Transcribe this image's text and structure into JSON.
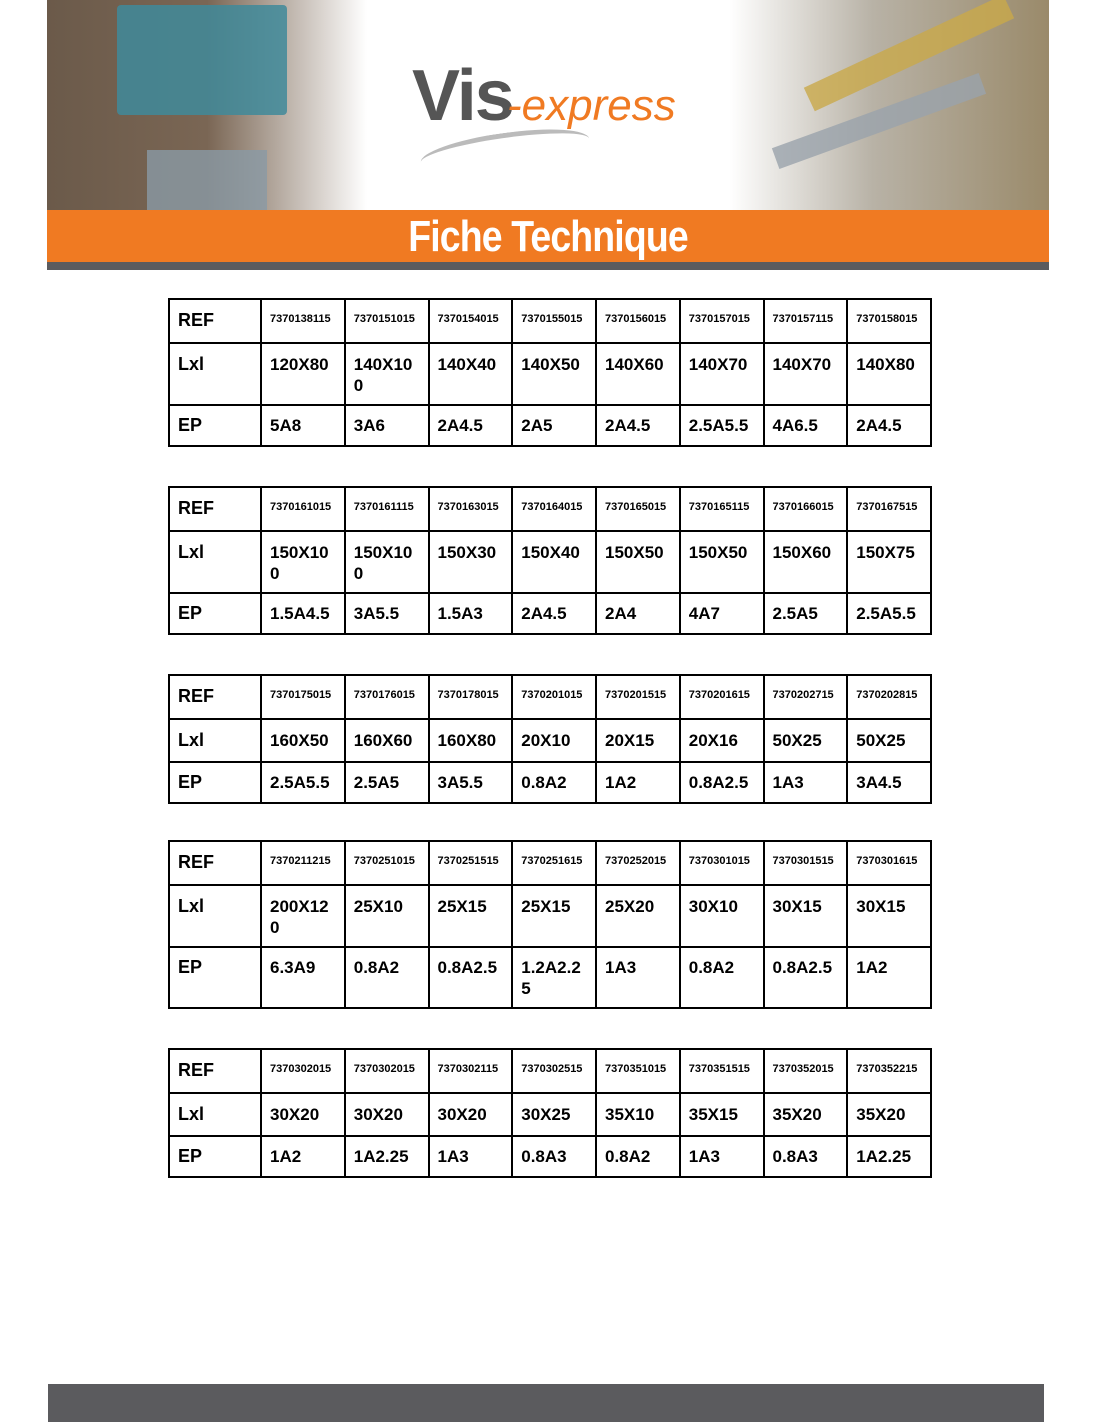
{
  "header": {
    "logo_main": "Vis",
    "logo_sub": "-express",
    "title": "Fiche Technique"
  },
  "row_labels": {
    "ref": "REF",
    "lxl": "Lxl",
    "ep": "EP"
  },
  "tables": [
    {
      "ref": [
        "7370138115",
        "7370151015",
        "7370154015",
        "7370155015",
        "7370156015",
        "7370157015",
        "7370157115",
        "7370158015"
      ],
      "lxl": [
        "120X80",
        "140X100",
        "140X40",
        "140X50",
        "140X60",
        "140X70",
        "140X70",
        "140X80"
      ],
      "ep": [
        "5A8",
        "3A6",
        "2A4.5",
        "2A5",
        "2A4.5",
        "2.5A5.5",
        "4A6.5",
        "2A4.5"
      ]
    },
    {
      "ref": [
        "7370161015",
        "7370161115",
        "7370163015",
        "7370164015",
        "7370165015",
        "7370165115",
        "7370166015",
        "7370167515"
      ],
      "lxl": [
        "150X100",
        "150X100",
        "150X30",
        "150X40",
        "150X50",
        "150X50",
        "150X60",
        "150X75"
      ],
      "ep": [
        "1.5A4.5",
        "3A5.5",
        "1.5A3",
        "2A4.5",
        "2A4",
        "4A7",
        "2.5A5",
        "2.5A5.5"
      ]
    },
    {
      "ref": [
        "7370175015",
        "7370176015",
        "7370178015",
        "7370201015",
        "7370201515",
        "7370201615",
        "7370202715",
        "7370202815"
      ],
      "lxl": [
        "160X50",
        "160X60",
        "160X80",
        "20X10",
        "20X15",
        "20X16",
        "50X25",
        "50X25"
      ],
      "ep": [
        "2.5A5.5",
        "2.5A5",
        "3A5.5",
        "0.8A2",
        "1A2",
        "0.8A2.5",
        "1A3",
        "3A4.5"
      ]
    },
    {
      "ref": [
        "7370211215",
        "7370251015",
        "7370251515",
        "7370251615",
        "7370252015",
        "7370301015",
        "7370301515",
        "7370301615"
      ],
      "lxl": [
        "200X120",
        "25X10",
        "25X15",
        "25X15",
        "25X20",
        "30X10",
        "30X15",
        "30X15"
      ],
      "ep": [
        "6.3A9",
        "0.8A2",
        "0.8A2.5",
        "1.2A2.25",
        "1A3",
        "0.8A2",
        "0.8A2.5",
        "1A2"
      ]
    },
    {
      "ref": [
        "7370302015",
        "7370302015",
        "7370302115",
        "7370302515",
        "7370351015",
        "7370351515",
        "7370352015",
        "7370352215"
      ],
      "lxl": [
        "30X20",
        "30X20",
        "30X20",
        "30X25",
        "35X10",
        "35X15",
        "35X20",
        "35X20"
      ],
      "ep": [
        "1A2",
        "1A2.25",
        "1A3",
        "0.8A3",
        "0.8A2",
        "1A3",
        "0.8A3",
        "1A2.25"
      ]
    }
  ]
}
